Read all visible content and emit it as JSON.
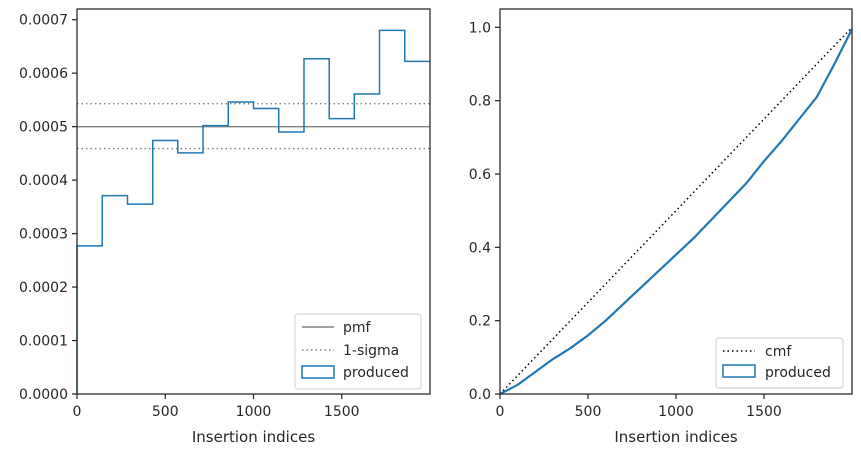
{
  "chart_data": [
    {
      "type": "step",
      "xlabel": "Insertion indices",
      "ylabel": "",
      "xlim": [
        0,
        2000
      ],
      "ylim": [
        0,
        0.00072
      ],
      "xticks": [
        0,
        500,
        1000,
        1500
      ],
      "xtick_labels": [
        "0",
        "500",
        "1000",
        "1500"
      ],
      "yticks": [
        0,
        0.0001,
        0.0002,
        0.0003,
        0.0004,
        0.0005,
        0.0006,
        0.0007
      ],
      "ytick_labels": [
        "0.0000",
        "0.0001",
        "0.0002",
        "0.0003",
        "0.0004",
        "0.0005",
        "0.0006",
        "0.0007"
      ],
      "grid": false,
      "legend_position": "lower-right",
      "bin_edges": [
        0,
        143,
        286,
        429,
        571,
        714,
        857,
        1000,
        1143,
        1286,
        1429,
        1571,
        1714,
        1857,
        2000
      ],
      "series": [
        {
          "name": "produced",
          "color": "#1f77b4",
          "values": [
            0.000277,
            0.000371,
            0.000355,
            0.000474,
            0.000451,
            0.000502,
            0.000546,
            0.000534,
            0.00049,
            0.000627,
            0.000515,
            0.000561,
            0.00068,
            0.000622
          ]
        }
      ],
      "reference_lines": [
        {
          "name": "pmf",
          "y": 0.0005,
          "color": "#808080",
          "style": "solid"
        },
        {
          "name": "1-sigma",
          "y": 0.000543,
          "color": "#808080",
          "style": "dotted"
        },
        {
          "name": "1-sigma",
          "y": 0.000459,
          "color": "#808080",
          "style": "dotted"
        }
      ],
      "legend": [
        "pmf",
        "1-sigma",
        "produced"
      ]
    },
    {
      "type": "line",
      "xlabel": "Insertion indices",
      "ylabel": "",
      "xlim": [
        0,
        2000
      ],
      "ylim": [
        0,
        1.05
      ],
      "xticks": [
        0,
        500,
        1000,
        1500
      ],
      "xtick_labels": [
        "0",
        "500",
        "1000",
        "1500"
      ],
      "yticks": [
        0,
        0.2,
        0.4,
        0.6,
        0.8,
        1.0
      ],
      "ytick_labels": [
        "0.0",
        "0.2",
        "0.4",
        "0.6",
        "0.8",
        "1.0"
      ],
      "grid": false,
      "legend_position": "lower-right",
      "series": [
        {
          "name": "cmf",
          "color": "#000000",
          "style": "dotted",
          "x": [
            0,
            2000
          ],
          "y": [
            0,
            1.0
          ]
        },
        {
          "name": "produced",
          "color": "#1f77b4",
          "style": "solid",
          "x": [
            0,
            100,
            200,
            300,
            400,
            500,
            600,
            700,
            800,
            900,
            1000,
            1100,
            1200,
            1300,
            1400,
            1500,
            1600,
            1700,
            1800,
            1900,
            2000
          ],
          "y": [
            0,
            0.025,
            0.06,
            0.095,
            0.125,
            0.16,
            0.2,
            0.245,
            0.29,
            0.335,
            0.38,
            0.425,
            0.475,
            0.525,
            0.575,
            0.635,
            0.69,
            0.75,
            0.81,
            0.9,
            0.995
          ]
        }
      ],
      "legend": [
        "cmf",
        "produced"
      ]
    }
  ]
}
